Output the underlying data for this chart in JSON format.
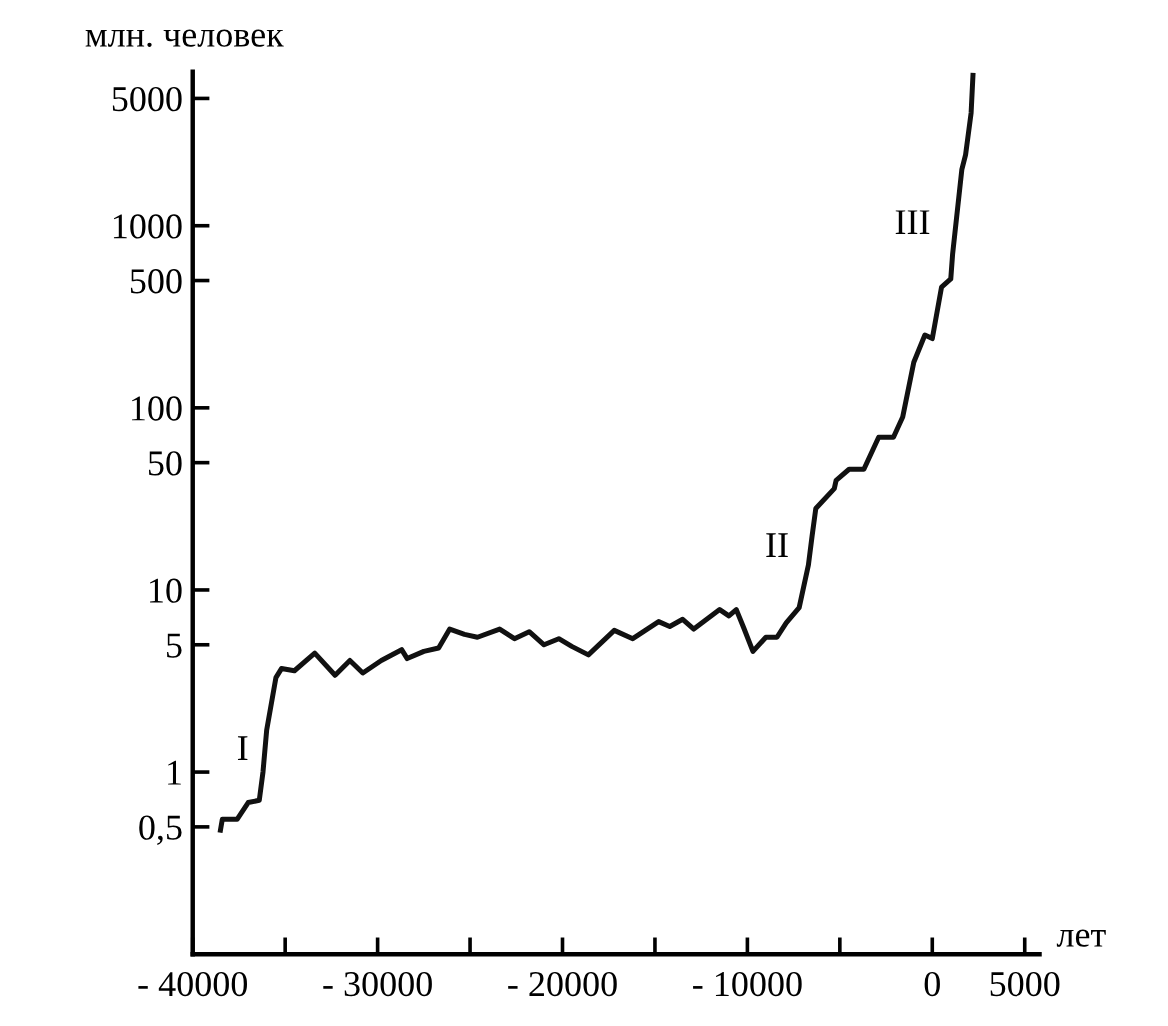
{
  "chart_data": {
    "type": "line",
    "ylabel": "млн. человек",
    "xlabel": "лет",
    "log": "y",
    "grid": false,
    "legend": false,
    "marker": "none",
    "line_style": "solid",
    "xlim": [
      -40000,
      5800
    ],
    "ylim": [
      0.1,
      7000
    ],
    "xticks": [
      {
        "value": -40000,
        "label": "- 40000"
      },
      {
        "value": -35000,
        "label": null
      },
      {
        "value": -30000,
        "label": "- 30000"
      },
      {
        "value": -25000,
        "label": null
      },
      {
        "value": -20000,
        "label": "- 20000"
      },
      {
        "value": -15000,
        "label": null
      },
      {
        "value": -10000,
        "label": "- 10000"
      },
      {
        "value": -5000,
        "label": null
      },
      0,
      5000
    ],
    "yticks": [
      {
        "value": 0.5,
        "label": "0,5"
      },
      1,
      5,
      10,
      50,
      100,
      500,
      1000,
      5000
    ],
    "series": [
      {
        "color": "#111111",
        "x": [
          -38500,
          -38400,
          -37600,
          -37000,
          -36400,
          -36200,
          -36000,
          -35500,
          -35200,
          -34500,
          -33400,
          -32300,
          -31500,
          -30800,
          -29800,
          -28700,
          -28400,
          -27500,
          -26700,
          -26100,
          -25300,
          -24600,
          -23400,
          -22600,
          -21800,
          -21000,
          -20200,
          -19500,
          -18600,
          -17200,
          -16200,
          -14800,
          -14200,
          -13500,
          -12900,
          -11500,
          -11000,
          -10600,
          -10200,
          -9700,
          -9000,
          -8400,
          -7900,
          -7200,
          -6700,
          -6500,
          -6300,
          -5300,
          -5200,
          -4500,
          -3700,
          -2900,
          -2100,
          -1600,
          -1000,
          -400,
          0,
          500,
          1000,
          1100,
          1600,
          1800,
          2100,
          2200
        ],
        "values": [
          0.48,
          0.55,
          0.55,
          0.68,
          0.7,
          1.0,
          1.7,
          3.3,
          3.7,
          3.6,
          4.5,
          3.4,
          4.1,
          3.5,
          4.1,
          4.7,
          4.2,
          4.6,
          4.8,
          6.1,
          5.7,
          5.5,
          6.1,
          5.4,
          5.9,
          5.0,
          5.4,
          4.9,
          4.4,
          6.0,
          5.4,
          6.7,
          6.3,
          6.9,
          6.1,
          7.8,
          7.2,
          7.8,
          6.2,
          4.6,
          5.5,
          5.5,
          6.6,
          8.0,
          13.7,
          19.8,
          28,
          36,
          40,
          46,
          46,
          69,
          69,
          89,
          178,
          251,
          240,
          460,
          510,
          700,
          2040,
          2450,
          4160,
          6700
        ]
      }
    ],
    "annotations": [
      "I",
      "II",
      "III"
    ]
  }
}
